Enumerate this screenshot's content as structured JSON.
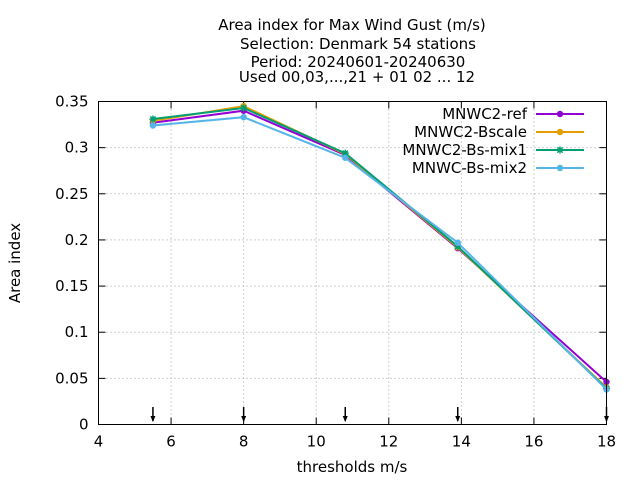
{
  "chart_data": {
    "type": "line",
    "title_lines": [
      "Area index  for Max Wind Gust (m/s)",
      "Selection: Denmark     54 stations",
      "Period: 20240601-20240630",
      "Used 00,03,...,21 + 01 02 ... 12"
    ],
    "xlabel": "thresholds m/s",
    "ylabel": "Area index",
    "xlim": [
      4,
      18
    ],
    "ylim": [
      0,
      0.35
    ],
    "xticks": [
      4,
      6,
      8,
      10,
      12,
      14,
      16,
      18
    ],
    "xtick_labels": [
      "4",
      "6",
      "8",
      "10",
      "12",
      "14",
      "16",
      "18"
    ],
    "yticks": [
      0,
      0.05,
      0.1,
      0.15,
      0.2,
      0.25,
      0.3,
      0.35
    ],
    "ytick_labels": [
      "0",
      "0.05",
      "0.1",
      "0.15",
      "0.2",
      "0.25",
      "0.3",
      "0.35"
    ],
    "grid": true,
    "legend_position": "top-right",
    "threshold_arrows": [
      5.5,
      8,
      10.8,
      13.9,
      18
    ],
    "series": [
      {
        "name": "MNWC2-ref",
        "color": "#9400d3",
        "marker": "filled-circle",
        "x": [
          5.5,
          8,
          10.8,
          13.9,
          18
        ],
        "y": [
          0.327,
          0.34,
          0.292,
          0.191,
          0.046
        ]
      },
      {
        "name": "MNWC2-Bscale",
        "color": "#e69f00",
        "marker": "filled-circle",
        "x": [
          5.5,
          8,
          10.8,
          13.9,
          18
        ],
        "y": [
          0.329,
          0.345,
          0.293,
          0.192,
          0.04
        ]
      },
      {
        "name": "MNWC2-Bs-mix1",
        "color": "#009e73",
        "marker": "asterisk",
        "x": [
          5.5,
          8,
          10.8,
          13.9,
          18
        ],
        "y": [
          0.331,
          0.343,
          0.294,
          0.193,
          0.039
        ]
      },
      {
        "name": "MNWC-Bs-mix2",
        "color": "#56b4e9",
        "marker": "filled-circle",
        "x": [
          5.5,
          8,
          10.8,
          13.9,
          18
        ],
        "y": [
          0.324,
          0.333,
          0.289,
          0.197,
          0.038
        ]
      }
    ]
  }
}
